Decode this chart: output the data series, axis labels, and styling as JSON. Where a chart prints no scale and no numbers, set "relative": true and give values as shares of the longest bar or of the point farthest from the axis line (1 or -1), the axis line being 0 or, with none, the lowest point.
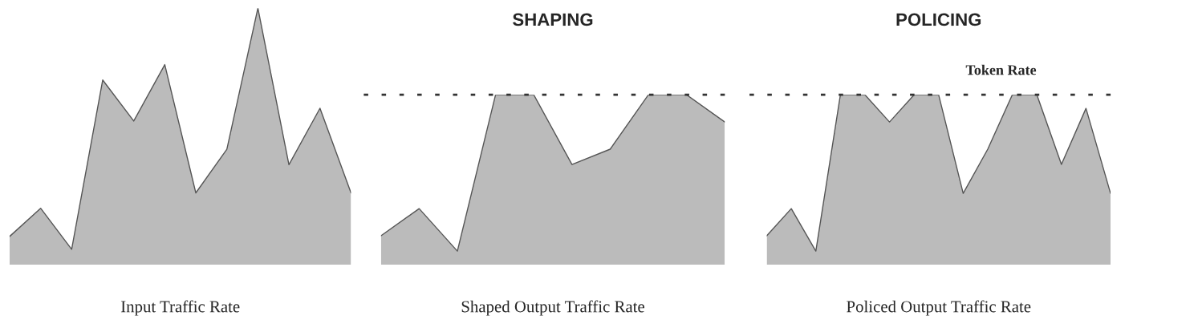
{
  "chart_data": [
    {
      "type": "area",
      "relative": true,
      "xlabel": "Input Traffic Rate",
      "categories": [
        null,
        null,
        null,
        null,
        null,
        null,
        null,
        null,
        null,
        null,
        null,
        null
      ],
      "series": [
        {
          "color": "#bbbbbb",
          "values": [
            0.11,
            0.22,
            0.06,
            0.72,
            0.56,
            0.78,
            0.28,
            0.45,
            1.0,
            0.39,
            0.61,
            0.28
          ]
        }
      ]
    },
    {
      "type": "area",
      "relative": true,
      "title": "SHAPING",
      "xlabel": "Shaped Output Traffic Rate",
      "categories": [
        null,
        null,
        null,
        null,
        null,
        null,
        null,
        null,
        null,
        null
      ],
      "series": [
        {
          "color": "#bbbbbb",
          "values": [
            0.17,
            0.33,
            0.08,
            1.0,
            1.0,
            0.59,
            0.68,
            1.0,
            1.0,
            0.84
          ]
        }
      ],
      "ref_lines": [
        {
          "axis": "y",
          "value": 1.0,
          "line_style": "dotted",
          "color": "#333333"
        }
      ]
    },
    {
      "type": "area",
      "relative": true,
      "title": "POLICING",
      "xlabel": "Policed Output Traffic Rate",
      "categories": [
        null,
        null,
        null,
        null,
        null,
        null,
        null,
        null,
        null,
        null,
        null,
        null,
        null,
        null,
        null
      ],
      "series": [
        {
          "color": "#bbbbbb",
          "values": [
            0.17,
            0.33,
            0.08,
            1.0,
            1.0,
            0.84,
            1.0,
            1.0,
            0.42,
            0.68,
            1.0,
            1.0,
            0.59,
            0.92,
            0.42
          ]
        }
      ],
      "ref_lines": [
        {
          "axis": "y",
          "value": 1.0,
          "label": "Token Rate",
          "line_style": "dotted",
          "color": "#333333"
        }
      ]
    }
  ]
}
